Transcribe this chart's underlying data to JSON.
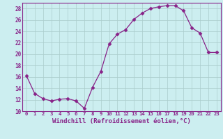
{
  "x": [
    0,
    1,
    2,
    3,
    4,
    5,
    6,
    7,
    8,
    9,
    10,
    11,
    12,
    13,
    14,
    15,
    16,
    17,
    18,
    19,
    20,
    21,
    22,
    23
  ],
  "y": [
    16.2,
    13.1,
    12.2,
    11.8,
    12.1,
    12.2,
    11.8,
    10.5,
    14.2,
    17.0,
    21.8,
    23.5,
    24.3,
    26.1,
    27.2,
    28.0,
    28.3,
    28.5,
    28.5,
    27.6,
    24.6,
    23.7,
    20.3,
    20.3
  ],
  "line_color": "#882288",
  "marker": "D",
  "marker_size": 2.5,
  "bg_color": "#cceef0",
  "grid_color": "#aacccc",
  "xlabel": "Windchill (Refroidissement éolien,°C)",
  "xlim": [
    -0.5,
    23.5
  ],
  "ylim": [
    10,
    29
  ],
  "yticks": [
    10,
    12,
    14,
    16,
    18,
    20,
    22,
    24,
    26,
    28
  ],
  "xticks": [
    0,
    1,
    2,
    3,
    4,
    5,
    6,
    7,
    8,
    9,
    10,
    11,
    12,
    13,
    14,
    15,
    16,
    17,
    18,
    19,
    20,
    21,
    22,
    23
  ],
  "tick_fontsize": 5.2,
  "xlabel_fontsize": 6.5
}
